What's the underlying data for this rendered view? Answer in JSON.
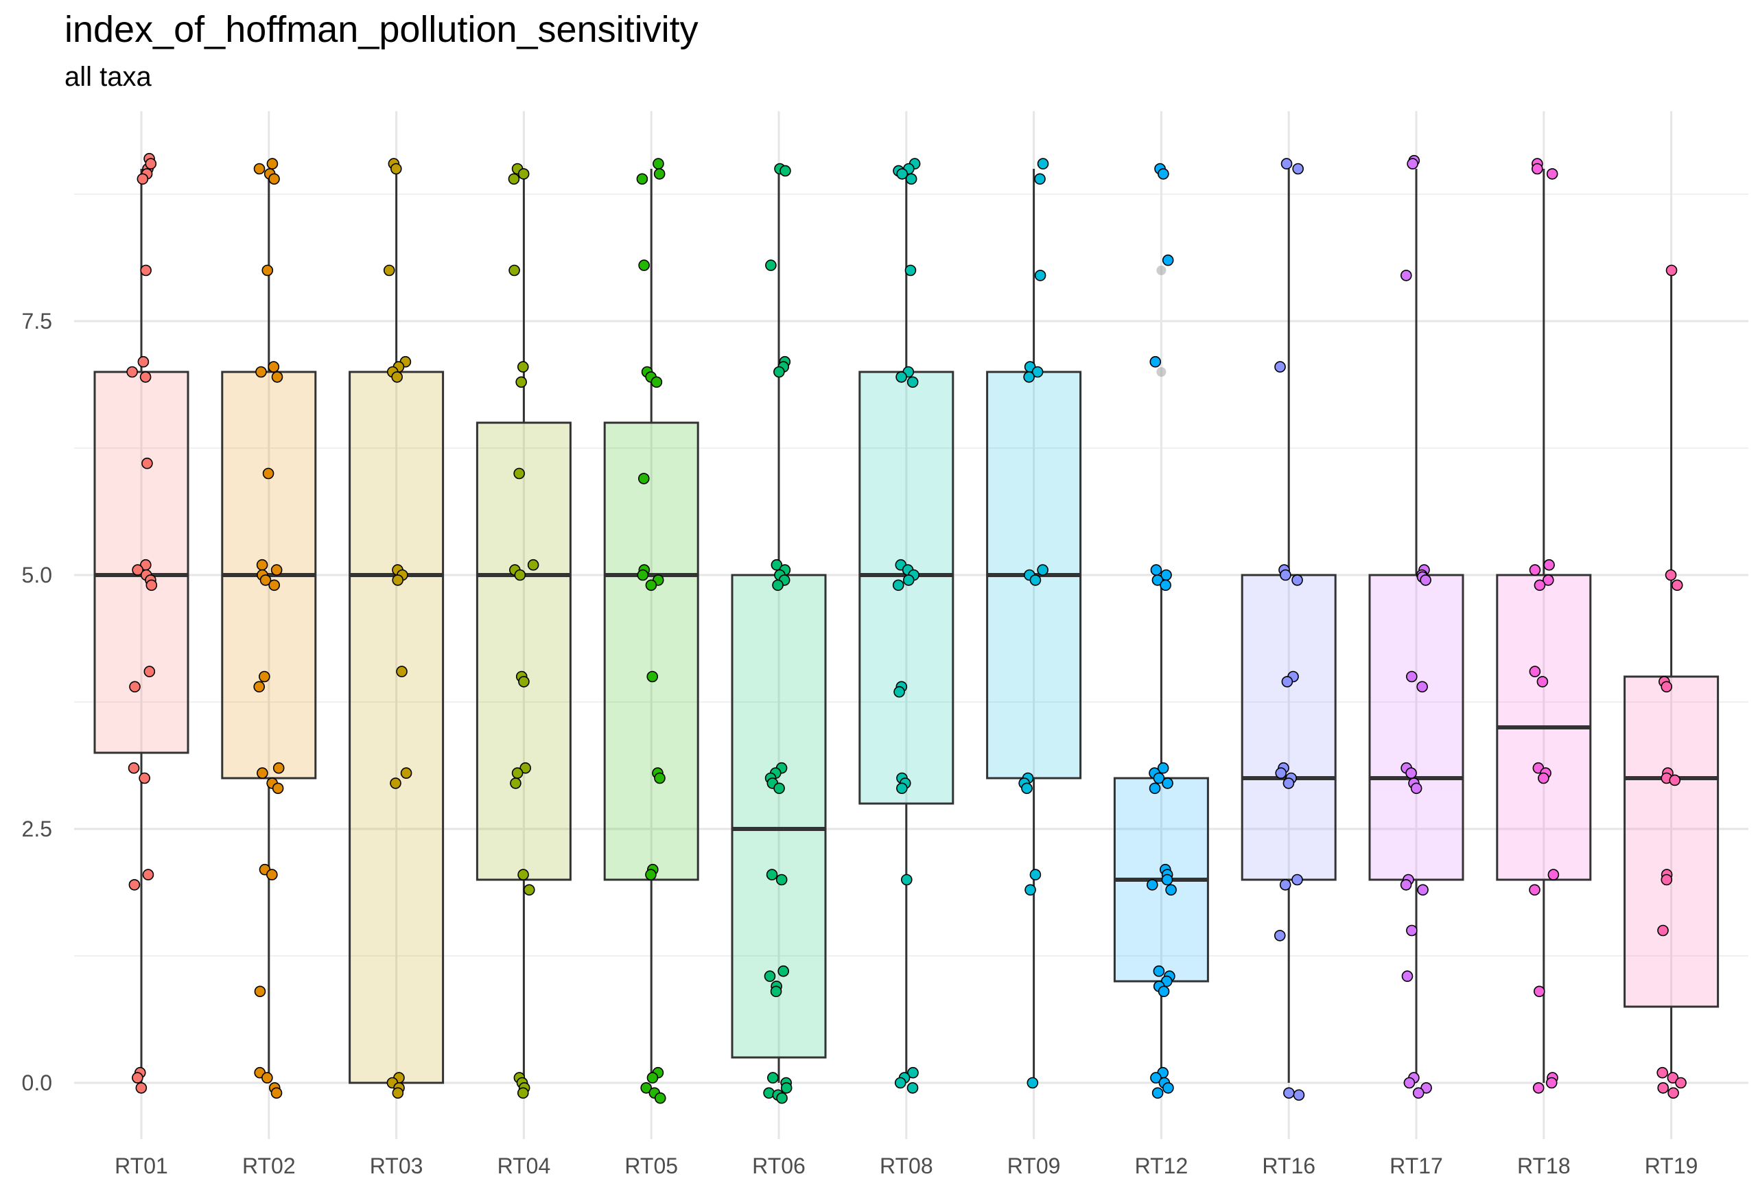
{
  "chart_data": {
    "type": "boxplot",
    "title": "index_of_hoffman_pollution_sensitivity",
    "subtitle": "all taxa",
    "xlabel": "",
    "ylabel": "",
    "ylim": [
      -0.5,
      9.3
    ],
    "yticks": [
      0.0,
      2.5,
      5.0,
      7.5
    ],
    "ytick_labels": [
      "0.0",
      "2.5",
      "5.0",
      "7.5"
    ],
    "grid": true,
    "legend": "none",
    "categories": [
      "RT01",
      "RT02",
      "RT03",
      "RT04",
      "RT05",
      "RT06",
      "RT08",
      "RT09",
      "RT12",
      "RT16",
      "RT17",
      "RT18",
      "RT19"
    ],
    "colors": [
      "#F8766D",
      "#E18A00",
      "#BE9C00",
      "#8CAB00",
      "#24B700",
      "#00BE70",
      "#00C1AB",
      "#00BBDA",
      "#00ACFC",
      "#8B93FF",
      "#D575FE",
      "#F962DD",
      "#FF65AC"
    ],
    "boxes": [
      {
        "name": "RT01",
        "q1": 3.25,
        "median": 5.0,
        "q3": 7.0,
        "whisker_low": 0.0,
        "whisker_high": 9.0,
        "outliers": []
      },
      {
        "name": "RT02",
        "q1": 3.0,
        "median": 5.0,
        "q3": 7.0,
        "whisker_low": 0.0,
        "whisker_high": 9.0,
        "outliers": []
      },
      {
        "name": "RT03",
        "q1": 0.0,
        "median": 5.0,
        "q3": 7.0,
        "whisker_low": 0.0,
        "whisker_high": 9.0,
        "outliers": []
      },
      {
        "name": "RT04",
        "q1": 2.0,
        "median": 5.0,
        "q3": 6.5,
        "whisker_low": 0.0,
        "whisker_high": 9.0,
        "outliers": []
      },
      {
        "name": "RT05",
        "q1": 2.0,
        "median": 5.0,
        "q3": 6.5,
        "whisker_low": 0.0,
        "whisker_high": 9.0,
        "outliers": []
      },
      {
        "name": "RT06",
        "q1": 0.25,
        "median": 2.5,
        "q3": 5.0,
        "whisker_low": 0.0,
        "whisker_high": 9.0,
        "outliers": []
      },
      {
        "name": "RT08",
        "q1": 2.75,
        "median": 5.0,
        "q3": 7.0,
        "whisker_low": 0.0,
        "whisker_high": 9.0,
        "outliers": []
      },
      {
        "name": "RT09",
        "q1": 3.0,
        "median": 5.0,
        "q3": 7.0,
        "whisker_low": 0.0,
        "whisker_high": 9.0,
        "outliers": []
      },
      {
        "name": "RT12",
        "q1": 1.0,
        "median": 2.0,
        "q3": 3.0,
        "whisker_low": 0.0,
        "whisker_high": 5.0,
        "outliers": [
          7.0,
          8.0,
          9.0
        ]
      },
      {
        "name": "RT16",
        "q1": 2.0,
        "median": 3.0,
        "q3": 5.0,
        "whisker_low": 0.0,
        "whisker_high": 9.0,
        "outliers": []
      },
      {
        "name": "RT17",
        "q1": 2.0,
        "median": 3.0,
        "q3": 5.0,
        "whisker_low": 0.0,
        "whisker_high": 9.0,
        "outliers": []
      },
      {
        "name": "RT18",
        "q1": 2.0,
        "median": 3.5,
        "q3": 5.0,
        "whisker_low": 0.0,
        "whisker_high": 9.0,
        "outliers": []
      },
      {
        "name": "RT19",
        "q1": 0.75,
        "median": 3.0,
        "q3": 4.0,
        "whisker_low": 0.0,
        "whisker_high": 8.0,
        "outliers": []
      }
    ],
    "points": [
      {
        "name": "RT01",
        "values": [
          9.1,
          9.0,
          9.05,
          8.95,
          8.9,
          8.0,
          7.1,
          7.0,
          6.95,
          6.1,
          5.1,
          5.05,
          5.0,
          4.95,
          4.9,
          4.05,
          3.9,
          3.1,
          3.0,
          2.05,
          1.95,
          0.1,
          0.05,
          -0.05
        ]
      },
      {
        "name": "RT02",
        "values": [
          9.05,
          9.0,
          8.95,
          8.9,
          8.0,
          7.05,
          7.0,
          6.95,
          6.0,
          5.1,
          5.05,
          5.0,
          4.95,
          4.9,
          4.0,
          3.9,
          3.1,
          3.05,
          2.95,
          2.9,
          2.1,
          2.05,
          0.9,
          0.1,
          0.05,
          -0.05,
          -0.1
        ]
      },
      {
        "name": "RT03",
        "values": [
          9.05,
          9.0,
          8.0,
          7.1,
          7.05,
          7.0,
          6.95,
          5.05,
          5.0,
          4.95,
          4.05,
          3.05,
          2.95,
          0.05,
          0.0,
          -0.05,
          -0.1
        ]
      },
      {
        "name": "RT04",
        "values": [
          9.0,
          8.95,
          8.9,
          8.0,
          7.05,
          6.9,
          6.0,
          5.1,
          5.05,
          5.0,
          4.0,
          3.95,
          3.1,
          3.05,
          2.95,
          2.05,
          1.9,
          0.05,
          0.0,
          -0.05,
          -0.1
        ]
      },
      {
        "name": "RT05",
        "values": [
          9.05,
          8.95,
          8.9,
          8.05,
          7.0,
          6.95,
          6.9,
          5.95,
          5.05,
          5.0,
          4.95,
          4.9,
          4.0,
          3.05,
          3.0,
          2.1,
          2.05,
          0.1,
          0.05,
          -0.05,
          -0.1,
          -0.15
        ]
      },
      {
        "name": "RT06",
        "values": [
          9.0,
          8.98,
          8.05,
          7.1,
          7.05,
          7.0,
          5.1,
          5.05,
          5.0,
          4.95,
          4.9,
          3.1,
          3.05,
          3.0,
          2.95,
          2.9,
          2.05,
          2.0,
          1.1,
          1.05,
          0.95,
          0.9,
          0.05,
          0.0,
          -0.05,
          -0.1,
          -0.12,
          -0.15
        ]
      },
      {
        "name": "RT08",
        "values": [
          9.05,
          9.0,
          8.98,
          8.95,
          8.9,
          8.0,
          7.0,
          6.95,
          6.9,
          5.1,
          5.05,
          5.0,
          4.95,
          4.9,
          3.9,
          3.85,
          3.0,
          2.95,
          2.9,
          2.0,
          0.1,
          0.05,
          0.0,
          -0.05
        ]
      },
      {
        "name": "RT09",
        "values": [
          9.05,
          8.9,
          7.95,
          7.05,
          7.0,
          6.95,
          5.05,
          5.0,
          4.95,
          3.0,
          2.95,
          2.9,
          2.05,
          1.9,
          0.0
        ]
      },
      {
        "name": "RT12",
        "values": [
          9.0,
          8.95,
          8.1,
          7.1,
          5.05,
          5.0,
          4.95,
          4.9,
          3.1,
          3.05,
          3.0,
          2.95,
          2.9,
          2.1,
          2.05,
          2.0,
          1.95,
          1.9,
          1.1,
          1.05,
          1.0,
          0.95,
          0.9,
          0.1,
          0.05,
          0.0,
          -0.05,
          -0.1
        ]
      },
      {
        "name": "RT16",
        "values": [
          9.05,
          9.0,
          7.05,
          5.05,
          5.0,
          4.95,
          4.0,
          3.95,
          3.1,
          3.05,
          3.0,
          2.95,
          2.0,
          1.95,
          1.45,
          -0.1,
          -0.12
        ]
      },
      {
        "name": "RT17",
        "values": [
          9.08,
          9.05,
          7.95,
          5.05,
          5.0,
          4.98,
          4.95,
          4.0,
          3.9,
          3.1,
          3.05,
          2.95,
          2.9,
          2.0,
          1.95,
          1.9,
          1.5,
          1.05,
          0.05,
          0.0,
          -0.05,
          -0.1
        ]
      },
      {
        "name": "RT18",
        "values": [
          9.05,
          9.0,
          8.95,
          5.1,
          5.05,
          4.95,
          4.9,
          4.05,
          3.95,
          3.1,
          3.05,
          3.0,
          2.05,
          1.9,
          0.9,
          0.05,
          0.0,
          -0.05
        ]
      },
      {
        "name": "RT19",
        "values": [
          8.0,
          5.0,
          4.9,
          3.95,
          3.9,
          3.05,
          3.0,
          2.98,
          2.05,
          2.0,
          1.5,
          0.1,
          0.05,
          0.0,
          -0.05,
          -0.1
        ]
      }
    ]
  }
}
